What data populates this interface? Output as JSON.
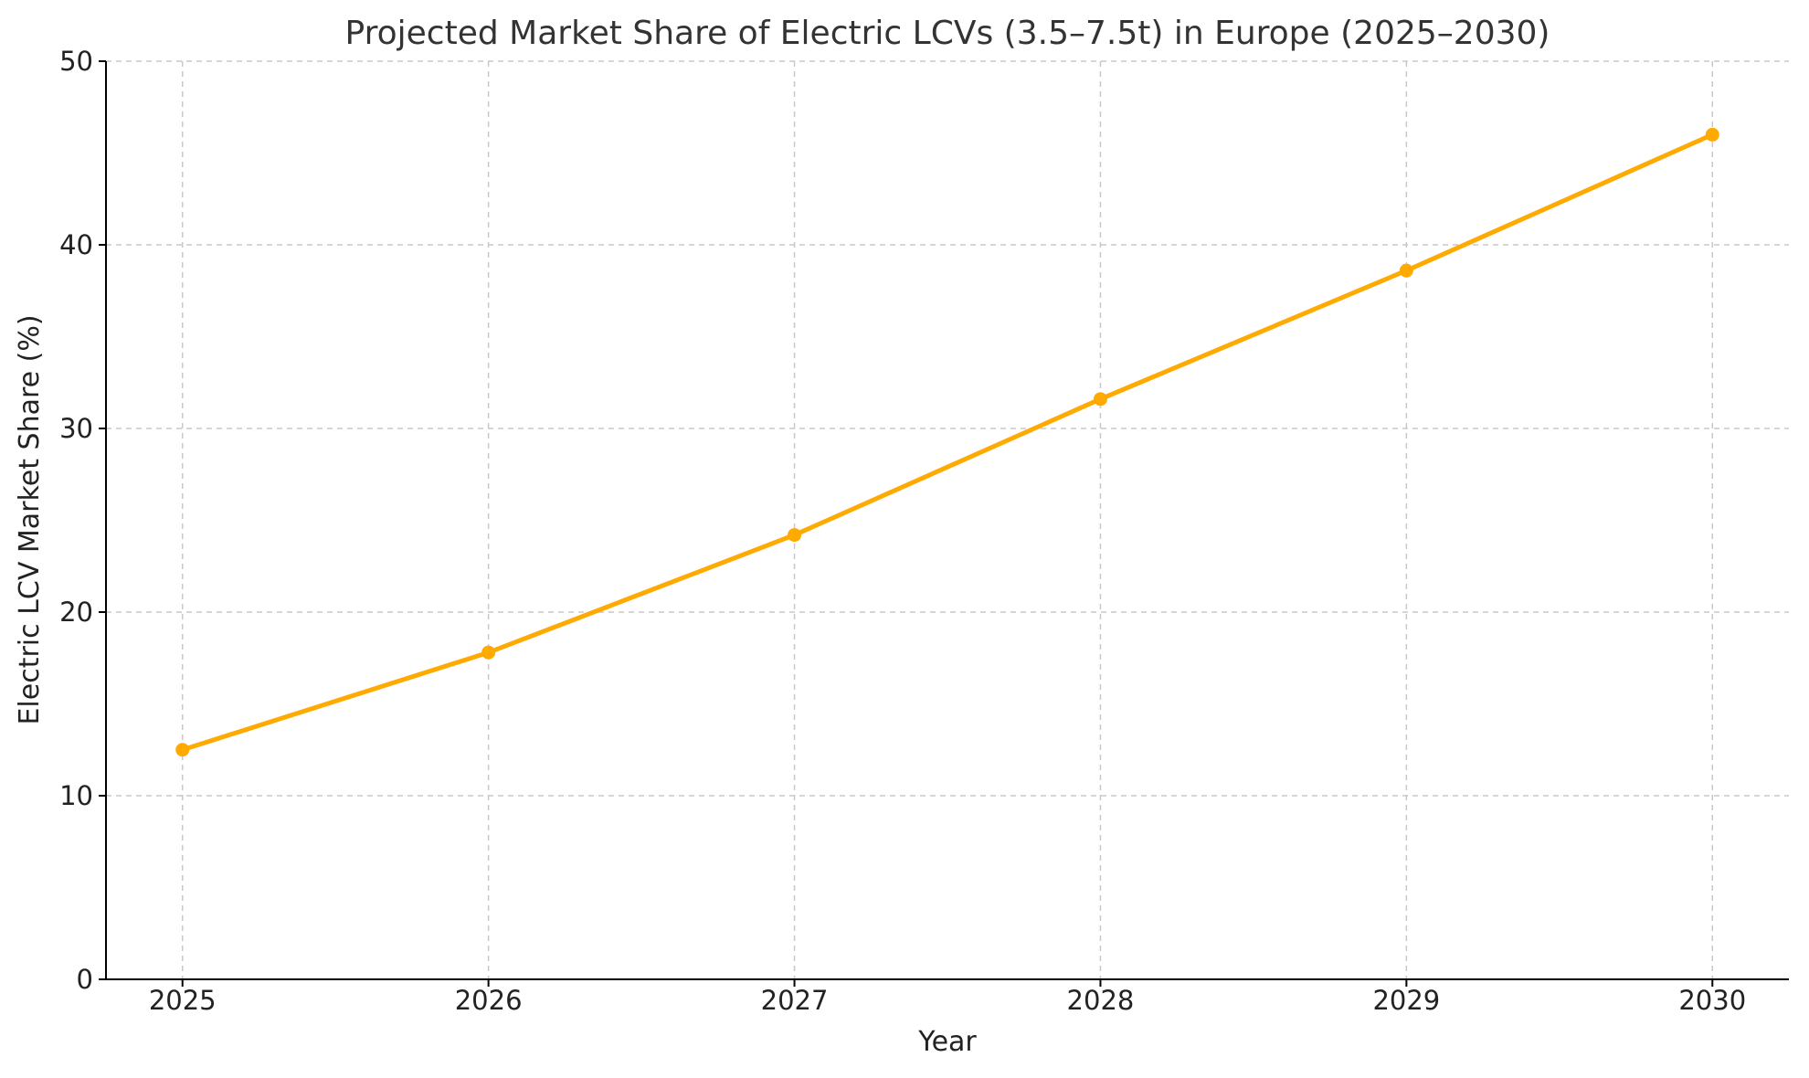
{
  "chart_data": {
    "type": "line",
    "title": "Projected Market Share of Electric LCVs (3.5–7.5t) in Europe (2025–2030)",
    "xlabel": "Year",
    "ylabel": "Electric LCV Market Share (%)",
    "x": [
      2025,
      2026,
      2027,
      2028,
      2029,
      2030
    ],
    "x_tick_labels": [
      "2025",
      "2026",
      "2027",
      "2028",
      "2029",
      "2030"
    ],
    "y_ticks": [
      0,
      10,
      20,
      30,
      40,
      50
    ],
    "y_tick_labels": [
      "0",
      "10",
      "20",
      "30",
      "40",
      "50"
    ],
    "ylim": [
      0,
      50
    ],
    "xlim": [
      2024.75,
      2030.25
    ],
    "grid": true,
    "series": [
      {
        "values": [
          12.5,
          17.8,
          24.2,
          31.6,
          38.6,
          46.0
        ],
        "color": "#FFAA00",
        "marker": "circle"
      }
    ]
  }
}
